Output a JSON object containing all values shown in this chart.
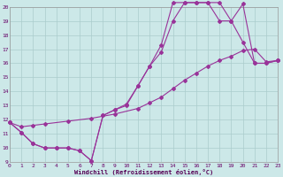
{
  "xlabel": "Windchill (Refroidissement éolien,°C)",
  "bg_color": "#cce8e8",
  "grid_color": "#aacccc",
  "line_color": "#993399",
  "xlim": [
    0,
    23
  ],
  "ylim": [
    9,
    20
  ],
  "xticks": [
    0,
    1,
    2,
    3,
    4,
    5,
    6,
    7,
    8,
    9,
    10,
    11,
    12,
    13,
    14,
    15,
    16,
    17,
    18,
    19,
    20,
    21,
    22,
    23
  ],
  "yticks": [
    9,
    10,
    11,
    12,
    13,
    14,
    15,
    16,
    17,
    18,
    19,
    20
  ],
  "line1_x": [
    0,
    1,
    2,
    3,
    4,
    5,
    6,
    7,
    8,
    9,
    10,
    11,
    12,
    13,
    14,
    15,
    16,
    17,
    18,
    19,
    20,
    21,
    22,
    23
  ],
  "line1_y": [
    11.8,
    11.1,
    10.3,
    10.0,
    10.0,
    10.0,
    9.8,
    9.1,
    12.3,
    12.7,
    13.0,
    14.4,
    15.8,
    16.8,
    19.0,
    20.3,
    20.3,
    20.3,
    20.3,
    19.0,
    20.2,
    16.0,
    16.0,
    16.2
  ],
  "line2_x": [
    0,
    1,
    2,
    3,
    4,
    5,
    6,
    7,
    8,
    9,
    10,
    11,
    12,
    13,
    14,
    15,
    16,
    17,
    18,
    19,
    20,
    21,
    22,
    23
  ],
  "line2_y": [
    11.8,
    11.1,
    10.3,
    10.0,
    10.0,
    10.0,
    9.8,
    9.1,
    12.3,
    12.7,
    13.1,
    14.4,
    15.8,
    17.3,
    20.3,
    20.3,
    20.3,
    20.3,
    19.0,
    19.0,
    17.5,
    16.0,
    16.0,
    16.2
  ],
  "line3_x": [
    0,
    1,
    2,
    3,
    5,
    7,
    9,
    11,
    12,
    13,
    14,
    15,
    16,
    17,
    18,
    19,
    20,
    21,
    22,
    23
  ],
  "line3_y": [
    11.8,
    11.5,
    11.6,
    11.7,
    11.9,
    12.1,
    12.4,
    12.8,
    13.2,
    13.6,
    14.2,
    14.8,
    15.3,
    15.8,
    16.2,
    16.5,
    16.9,
    17.0,
    16.1,
    16.2
  ]
}
